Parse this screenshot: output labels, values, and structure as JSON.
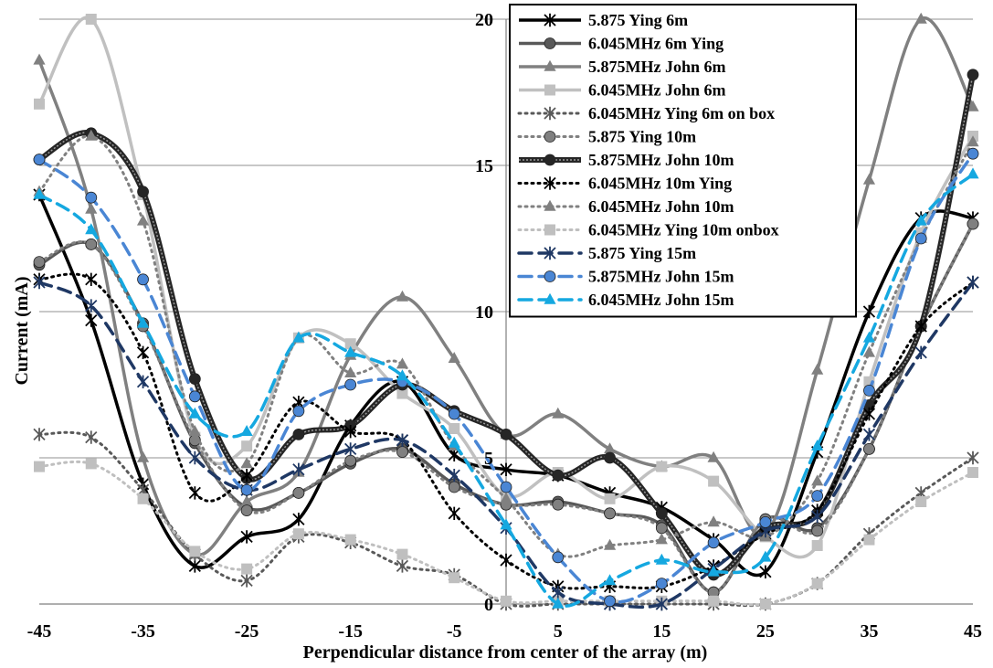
{
  "chart_data": {
    "type": "line",
    "title": "",
    "xlabel": "Perpendicular distance from center of the array (m)",
    "ylabel": "Current (mA)",
    "xlim": [
      -45,
      45
    ],
    "ylim": [
      0,
      20
    ],
    "x_ticks": [
      "-45",
      "-35",
      "-25",
      "-15",
      "-5",
      "5",
      "15",
      "25",
      "35",
      "45"
    ],
    "y_ticks": [
      "0",
      "5",
      "10",
      "15",
      "20"
    ],
    "grid": "horizontal",
    "legend_position": "top-center",
    "x": [
      -45,
      -40,
      -35,
      -30,
      -25,
      -20,
      -15,
      -10,
      -5,
      0,
      5,
      10,
      15,
      20,
      25,
      30,
      35,
      40,
      45
    ],
    "series": [
      {
        "name": "5.875 Ying 6m",
        "color": "#000000",
        "marker": "star",
        "dash": "solid",
        "width": 3.5,
        "values": [
          14,
          9.7,
          4.1,
          1.3,
          2.3,
          2.9,
          6.1,
          7.6,
          5.1,
          4.6,
          4.4,
          3.8,
          3.3,
          2.2,
          1.1,
          5.2,
          10,
          13.2,
          13.2
        ]
      },
      {
        "name": "6.045MHz 6m Ying",
        "color": "#595959",
        "marker": "circle",
        "dash": "solid",
        "width": 3.5,
        "values": [
          11.6,
          12.3,
          9.6,
          5.5,
          3.3,
          3.8,
          4.8,
          5.3,
          4.1,
          3.4,
          3.5,
          3.1,
          2.7,
          0.4,
          2.9,
          2.6,
          5.3,
          9.5,
          13
        ]
      },
      {
        "name": "5.875MHz John 6m",
        "color": "#808080",
        "marker": "triangle",
        "dash": "solid",
        "width": 3.5,
        "values": [
          18.6,
          13.5,
          5,
          1.7,
          3.5,
          4.5,
          8.5,
          10.5,
          8.4,
          5.8,
          6.5,
          5.3,
          4.7,
          5,
          2.4,
          8,
          14.5,
          20,
          17
        ]
      },
      {
        "name": "6.045MHz John 6m",
        "color": "#c0c0c0",
        "marker": "square",
        "dash": "solid",
        "width": 3.5,
        "values": [
          17.1,
          20,
          14,
          5.7,
          5.4,
          9.1,
          8.9,
          7.2,
          6,
          3.7,
          4.5,
          3.6,
          4.7,
          4.2,
          2.3,
          2,
          7.6,
          12.7,
          16
        ]
      },
      {
        "name": "6.045MHz Ying 6m on box",
        "color": "#595959",
        "marker": "star",
        "dash": "dot",
        "width": 3,
        "values": [
          5.8,
          5.7,
          3.9,
          1.7,
          0.8,
          2.3,
          2.1,
          1.3,
          1,
          0,
          0,
          0,
          0,
          0,
          0,
          0.7,
          2.4,
          3.8,
          5
        ]
      },
      {
        "name": "5.875 Ying 10m",
        "color": "#808080",
        "marker": "circle",
        "dash": "dot",
        "width": 3,
        "values": [
          11.7,
          12.3,
          9.5,
          5.6,
          3.2,
          3.8,
          4.9,
          5.2,
          4,
          3.4,
          3.4,
          3.1,
          2.6,
          0.4,
          2.9,
          2.5,
          5.3,
          9.5,
          13
        ]
      },
      {
        "name": "5.875MHz John 10m",
        "color": "#262626",
        "marker": "circle",
        "dash": "double",
        "width": 5,
        "values": [
          15.2,
          16.1,
          14.1,
          7.7,
          4.3,
          5.8,
          6.1,
          7.5,
          6.6,
          5.8,
          4.4,
          5,
          3.1,
          1,
          2.6,
          3.1,
          6.8,
          9.5,
          18.1
        ]
      },
      {
        "name": "6.045MHz 10m Ying",
        "color": "#000000",
        "marker": "star",
        "dash": "dot",
        "width": 3,
        "values": [
          11.1,
          11.1,
          8.6,
          3.8,
          4.4,
          6.9,
          5.9,
          5.6,
          3.1,
          1.5,
          0.6,
          0.6,
          0.6,
          1.3,
          2.4,
          3.2,
          6.5,
          9.5,
          11
        ]
      },
      {
        "name": "6.045MHz John 10m",
        "color": "#808080",
        "marker": "triangle",
        "dash": "dot",
        "width": 3,
        "values": [
          14.1,
          16,
          13.1,
          5.9,
          4.8,
          9.1,
          7.9,
          8.2,
          5.4,
          3.6,
          1.7,
          2,
          2.2,
          2.8,
          2.3,
          4.2,
          8.6,
          12.5,
          15.8
        ]
      },
      {
        "name": "6.045MHz Ying 10m onbox",
        "color": "#bfbfbf",
        "marker": "square",
        "dash": "dot",
        "width": 3,
        "values": [
          4.7,
          4.8,
          3.6,
          1.8,
          1.2,
          2.4,
          2.2,
          1.7,
          0.9,
          0.1,
          0.1,
          0.1,
          0.1,
          0.1,
          0,
          0.7,
          2.2,
          3.5,
          4.5
        ]
      },
      {
        "name": "5.875 Ying 15m",
        "color": "#1f3864",
        "marker": "star",
        "dash": "dash",
        "width": 3.5,
        "values": [
          11,
          10.2,
          7.6,
          5,
          3.9,
          4.6,
          5.3,
          5.6,
          4.4,
          2.6,
          0.4,
          0,
          0,
          1.2,
          2.5,
          3,
          5.8,
          8.6,
          11
        ]
      },
      {
        "name": "5.875MHz John 15m",
        "color": "#4a86d4",
        "marker": "circle",
        "dash": "dash",
        "width": 3.5,
        "values": [
          15.2,
          13.9,
          11.1,
          7.1,
          3.9,
          6.6,
          7.5,
          7.6,
          6.5,
          4,
          1.6,
          0.1,
          0.7,
          2.1,
          2.8,
          3.7,
          7.3,
          12.5,
          15.4
        ]
      },
      {
        "name": "6.045MHz John 15m",
        "color": "#15a8e0",
        "marker": "triangle",
        "dash": "dash",
        "width": 3.5,
        "values": [
          14,
          12.8,
          9.6,
          6.5,
          5.9,
          9.1,
          8.6,
          7.8,
          5.5,
          2.7,
          0,
          0.8,
          1.5,
          1.1,
          1.6,
          5.4,
          9.1,
          13.1,
          14.7
        ]
      }
    ]
  }
}
